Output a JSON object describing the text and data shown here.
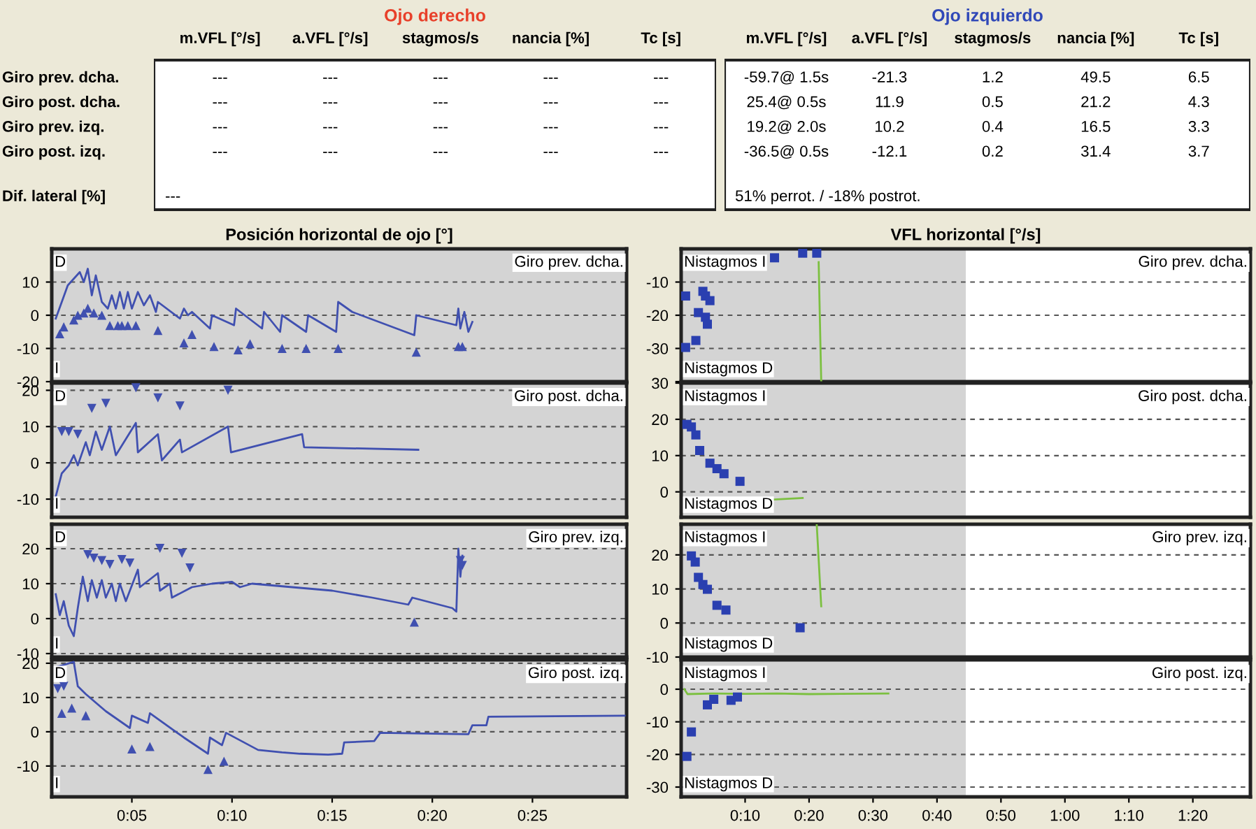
{
  "chart_data": [
    {
      "type": "other",
      "title": "Ojo derecho",
      "color": "#e8402a",
      "categories": [
        "m.VFL [°/s]",
        "a.VFL [°/s]",
        "stagmos/s",
        "nancia [%]",
        "Tc [s]"
      ],
      "y_categories": [
        "Giro prev. dcha.",
        "Giro post. dcha.",
        "Giro prev. izq.",
        "Giro post. izq.",
        "Dif. lateral [%]"
      ],
      "cell_labels": [
        [
          "---",
          "---",
          "---",
          "---",
          "---"
        ],
        [
          "---",
          "---",
          "---",
          "---",
          "---"
        ],
        [
          "---",
          "---",
          "---",
          "---",
          "---"
        ],
        [
          "---",
          "---",
          "---",
          "---",
          "---"
        ],
        [
          "---",
          null,
          null,
          null,
          null
        ]
      ]
    },
    {
      "type": "other",
      "title": "Ojo izquierdo",
      "color": "#3048b8",
      "categories": [
        "m.VFL [°/s]",
        "a.VFL [°/s]",
        "stagmos/s",
        "nancia [%]",
        "Tc [s]"
      ],
      "cell_labels": [
        [
          "-59.7@ 1.5s",
          "-21.3",
          "1.2",
          "49.5",
          "6.5"
        ],
        [
          "25.4@ 0.5s",
          "11.9",
          "0.5",
          "21.2",
          "4.3"
        ],
        [
          "19.2@ 2.0s",
          "10.2",
          "0.4",
          "16.5",
          "3.3"
        ],
        [
          "-36.5@ 0.5s",
          "-12.1",
          "0.2",
          "31.4",
          "3.7"
        ],
        [
          "51% perrot. / -18% postrot.",
          null,
          null,
          null,
          null
        ]
      ]
    },
    {
      "type": "line",
      "subtitle": "Posición horizontal de ojo [°]",
      "title": "Giro prev. dcha.",
      "annotations": [
        "D",
        "I"
      ],
      "bands": [
        {
          "axis": "x",
          "from": 1,
          "to": 29.7,
          "color": "#d4d4d4"
        }
      ],
      "xlim": [
        1,
        29.7
      ],
      "ylim": [
        -20,
        20
      ],
      "yticks": [
        -20,
        -10,
        0,
        10
      ],
      "grid": "y",
      "tick_labels": "y",
      "series": [
        {
          "type": "line",
          "color": "#4050b0",
          "x": [
            1.2,
            1.5,
            1.8,
            2.1,
            2.4,
            2.6,
            2.8,
            3.0,
            3.2,
            3.5,
            3.8,
            4.0,
            4.2,
            4.4,
            4.6,
            4.8,
            5.0,
            5.3,
            5.6,
            5.9,
            6.2,
            6.3,
            7.4,
            7.6,
            7.8,
            8.0,
            8.9,
            9.0,
            10.1,
            10.2,
            11.5,
            11.6,
            12.4,
            12.5,
            13.7,
            13.8,
            15.2,
            15.3,
            16,
            19.1,
            19.2,
            21.2,
            21.3,
            21.4,
            21.6,
            21.8,
            22
          ],
          "values": [
            -1,
            4,
            9,
            11,
            13,
            10,
            14,
            6,
            12,
            4,
            2,
            6,
            2,
            7,
            2,
            7,
            2,
            7,
            3,
            6,
            1,
            4,
            -1,
            2,
            0,
            1,
            -4,
            0,
            -3,
            2,
            -4,
            1,
            -5,
            0,
            -5,
            0,
            -5,
            4,
            1,
            -6,
            0,
            -3,
            2,
            -4,
            1,
            -5,
            -2
          ]
        },
        {
          "type": "scatter",
          "marker": "triangle",
          "color": "#4050b0",
          "x": [
            1.4,
            1.6,
            2.1,
            2.3,
            2.6,
            2.8,
            3.1,
            3.5,
            3.9,
            4.3,
            4.5,
            4.8,
            5.2,
            6.3,
            7.6,
            8.0,
            9.1,
            10.3,
            10.9,
            12.5,
            13.7,
            15.3,
            19.2,
            21.3,
            21.5
          ],
          "values": [
            -5.6,
            -3.5,
            -1.4,
            0,
            0.7,
            2.1,
            0.7,
            0,
            -3.1,
            -3.1,
            -3.1,
            -3.1,
            -3.1,
            -4.6,
            -8.3,
            -5.8,
            -9.4,
            -10.4,
            -8.6,
            -10,
            -10,
            -10,
            -11.1,
            -9.4,
            -9.4
          ]
        }
      ]
    },
    {
      "type": "line",
      "title": "Giro post. dcha.",
      "annotations": [
        "D",
        "I"
      ],
      "bands": [
        {
          "axis": "x",
          "from": 1,
          "to": 29.7,
          "color": "#d4d4d4"
        }
      ],
      "xlim": [
        1,
        29.7
      ],
      "ylim": [
        -15,
        22
      ],
      "yticks": [
        -10,
        0,
        10,
        20
      ],
      "grid": "y",
      "tick_labels": "y",
      "series": [
        {
          "type": "line",
          "color": "#4050b0",
          "x": [
            1.2,
            1.5,
            1.85,
            2.1,
            2.3,
            2.7,
            2.9,
            3.2,
            3.5,
            3.9,
            4.2,
            5.2,
            5.3,
            6.3,
            6.5,
            7.4,
            7.5,
            9.8,
            9.95,
            13.5,
            13.6,
            19.3
          ],
          "values": [
            -9.3,
            -2.9,
            -0.7,
            2.1,
            -0.7,
            5.7,
            2.1,
            8.6,
            3.6,
            10,
            2.1,
            11,
            2.9,
            7.9,
            0.7,
            6.4,
            2.9,
            10,
            2.9,
            7.9,
            4.3,
            3.6
          ]
        },
        {
          "type": "scatter",
          "marker": "triangle_down",
          "color": "#4050b0",
          "x": [
            1.5,
            1.85,
            2.3,
            3.0,
            3.7,
            5.2,
            6.3,
            7.4,
            9.8
          ],
          "values": [
            8.6,
            8.6,
            7.9,
            15,
            16.4,
            20.7,
            17.9,
            15.7,
            20
          ]
        }
      ]
    },
    {
      "type": "line",
      "title": "Giro prev. izq.",
      "annotations": [
        "D",
        "I"
      ],
      "bands": [
        {
          "axis": "x",
          "from": 1,
          "to": 29.7,
          "color": "#d4d4d4"
        }
      ],
      "xlim": [
        1,
        29.7
      ],
      "ylim": [
        -11,
        27
      ],
      "yticks": [
        -10,
        0,
        10,
        20
      ],
      "grid": "y",
      "tick_labels": "y",
      "series": [
        {
          "type": "line",
          "color": "#4050b0",
          "x": [
            1.2,
            1.4,
            1.6,
            1.85,
            2.1,
            2.3,
            2.55,
            2.8,
            3.0,
            3.25,
            3.5,
            3.7,
            4.0,
            4.2,
            4.4,
            4.7,
            5.3,
            5.4,
            6.3,
            6.4,
            6.9,
            7.0,
            8,
            9,
            10,
            10.4,
            11,
            13,
            15,
            17,
            18.8,
            19.0,
            21.0,
            21.2,
            21.3,
            21.4,
            21.5
          ],
          "values": [
            7,
            1,
            5,
            -2,
            -5,
            3,
            12,
            5,
            11,
            6,
            11,
            6,
            10,
            5,
            10,
            5,
            14,
            9,
            13,
            8,
            10,
            6,
            9,
            10,
            10.5,
            9,
            10,
            9,
            8,
            6,
            4,
            6,
            3,
            2,
            20,
            12,
            18
          ]
        },
        {
          "type": "scatter",
          "marker": "triangle_down",
          "color": "#4050b0",
          "x": [
            2.8,
            3.1,
            3.5,
            3.9,
            4.5,
            4.9,
            6.4,
            7.5,
            7.9,
            21.4,
            21.5
          ],
          "values": [
            18.3,
            17.3,
            16.6,
            15.5,
            16.9,
            15.9,
            20.1,
            18.7,
            14.5,
            16.6,
            15.2
          ]
        },
        {
          "type": "scatter",
          "marker": "triangle",
          "color": "#4050b0",
          "x": [
            19.1
          ],
          "values": [
            -1
          ]
        }
      ]
    },
    {
      "type": "line",
      "title": "Giro post. izq.",
      "annotations": [
        "D",
        "I"
      ],
      "bands": [
        {
          "axis": "x",
          "from": 1,
          "to": 29.7,
          "color": "#d4d4d4"
        }
      ],
      "xlim": [
        1,
        29.7
      ],
      "ylim": [
        -19,
        21
      ],
      "yticks": [
        -10,
        0,
        10,
        20
      ],
      "xticks": [
        {
          "value": 5,
          "label": "0:05"
        },
        {
          "value": 10,
          "label": "0:10"
        },
        {
          "value": 15,
          "label": "0:15"
        },
        {
          "value": 20,
          "label": "0:20"
        },
        {
          "value": 25,
          "label": "0:25"
        }
      ],
      "grid": "y",
      "series": [
        {
          "type": "line",
          "color": "#4050b0",
          "x": [
            1.3,
            2.1,
            2.3,
            2.7,
            3.7,
            4.9,
            5.0,
            5.8,
            5.9,
            7.6,
            8.8,
            8.9,
            9.5,
            9.7,
            11.3,
            12.5,
            13.4,
            14.8,
            15.5,
            15.6,
            17.1,
            17.4,
            21.8,
            22,
            22.7,
            22.8,
            29.6
          ],
          "values": [
            19,
            20.4,
            13.3,
            11,
            6,
            1.1,
            4.7,
            2.6,
            5.4,
            -1.7,
            -6.4,
            -1.7,
            -3.9,
            -0.3,
            -5.3,
            -6,
            -6.4,
            -6.7,
            -6.4,
            -3.1,
            -2.7,
            -0.3,
            -0.7,
            1.9,
            1.9,
            4.4,
            4.7
          ]
        },
        {
          "type": "scatter",
          "marker": "triangle",
          "color": "#4050b0",
          "x": [
            1.5,
            2.0,
            2.7,
            5.0,
            5.9,
            8.8,
            9.6
          ],
          "values": [
            5.4,
            6.9,
            4.7,
            -5,
            -4.3,
            -11,
            -8.6
          ]
        },
        {
          "type": "scatter",
          "marker": "triangle_down",
          "color": "#4050b0",
          "x": [
            1.3,
            1.6
          ],
          "values": [
            12.6,
            13.3
          ]
        }
      ]
    },
    {
      "type": "scatter",
      "subtitle": "VFL horizontal [°/s]",
      "title": "Giro prev. dcha.",
      "annotations": [
        "Nistagmos I",
        "Nistagmos D"
      ],
      "bands": [
        {
          "axis": "x",
          "from": 0,
          "to": 44.5,
          "color": "#d4d4d4"
        }
      ],
      "xlim": [
        0,
        89
      ],
      "ylim": [
        -40,
        0
      ],
      "yticks": [
        {
          "value": -40,
          "label": null
        },
        -30,
        -20,
        -10
      ],
      "grid": "y",
      "tick_labels": "y",
      "series": [
        {
          "type": "scatter",
          "marker": "square",
          "color": "#2a3fb0",
          "x": [
            0.7,
            0.7,
            2.3,
            3.4,
            3.8,
            4.5,
            2.7,
            3.8,
            4.1,
            14.6,
            19,
            21.2
          ],
          "values": [
            -14.2,
            -29.7,
            -27.6,
            -12.8,
            -14.2,
            -15.6,
            -19.2,
            -20.6,
            -22.7,
            -2.7,
            -1.3,
            -1.3
          ]
        },
        {
          "type": "line",
          "color": "#7cc040",
          "x": [
            21.5,
            21.9
          ],
          "values": [
            -4,
            -40
          ]
        }
      ]
    },
    {
      "type": "scatter",
      "title": "Giro post. dcha.",
      "annotations": [
        "Nistagmos I",
        "Nistagmos D"
      ],
      "bands": [
        {
          "axis": "x",
          "from": 0,
          "to": 44.5,
          "color": "#d4d4d4"
        }
      ],
      "xlim": [
        0,
        89
      ],
      "ylim": [
        -7,
        30
      ],
      "yticks": [
        0,
        10,
        20,
        30
      ],
      "grid": "y",
      "tick_labels": "y",
      "series": [
        {
          "type": "scatter",
          "marker": "square",
          "color": "#2a3fb0",
          "x": [
            0.9,
            1.6,
            2.3,
            2.9,
            4.5,
            5.6,
            6.7,
            9.2
          ],
          "values": [
            18.6,
            17.9,
            15.7,
            11.4,
            7.9,
            6.4,
            5,
            2.9
          ]
        },
        {
          "type": "line",
          "color": "#7cc040",
          "x": [
            14.6,
            19
          ],
          "values": [
            -2.1,
            -1.7
          ]
        }
      ]
    },
    {
      "type": "scatter",
      "title": "Giro prev. izq.",
      "annotations": [
        "Nistagmos I",
        "Nistagmos D"
      ],
      "bands": [
        {
          "axis": "x",
          "from": 0,
          "to": 44.5,
          "color": "#d4d4d4"
        }
      ],
      "xlim": [
        0,
        89
      ],
      "ylim": [
        -10,
        29
      ],
      "yticks": [
        -10,
        0,
        10,
        20
      ],
      "grid": "y",
      "tick_labels": "y",
      "series": [
        {
          "type": "scatter",
          "marker": "square",
          "color": "#2a3fb0",
          "x": [
            1.6,
            2.2,
            2.7,
            3.4,
            4.1,
            5.6,
            7,
            18.6
          ],
          "values": [
            19.7,
            17.9,
            13.4,
            11.3,
            9.9,
            5.2,
            3.8,
            -1.4
          ]
        },
        {
          "type": "line",
          "color": "#7cc040",
          "x": [
            21.2,
            21.9
          ],
          "values": [
            28.9,
            4.9
          ]
        }
      ]
    },
    {
      "type": "scatter",
      "title": "Giro post. izq.",
      "annotations": [
        "Nistagmos I",
        "Nistagmos D"
      ],
      "bands": [
        {
          "axis": "x",
          "from": 0,
          "to": 44.5,
          "color": "#d4d4d4"
        }
      ],
      "xlim": [
        0,
        89
      ],
      "ylim": [
        -33,
        9
      ],
      "yticks": [
        -30,
        -20,
        -10,
        0
      ],
      "xticks": [
        {
          "value": 10,
          "label": "0:10"
        },
        {
          "value": 20,
          "label": "0:20"
        },
        {
          "value": 30,
          "label": "0:30"
        },
        {
          "value": 40,
          "label": "0:40"
        },
        {
          "value": 50,
          "label": "0:50"
        },
        {
          "value": 60,
          "label": "1:00"
        },
        {
          "value": 70,
          "label": "1:10"
        },
        {
          "value": 80,
          "label": "1:20"
        }
      ],
      "grid": "y",
      "series": [
        {
          "type": "scatter",
          "marker": "square",
          "color": "#2a3fb0",
          "x": [
            0.9,
            1.6,
            4.1,
            5.1,
            7.8,
            8.8
          ],
          "values": [
            -20.6,
            -13.1,
            -4.8,
            -3.1,
            -3.4,
            -2.4
          ]
        },
        {
          "type": "line",
          "color": "#7cc040",
          "x": [
            0.5,
            1,
            5,
            10,
            15,
            20,
            25,
            32.4
          ],
          "values": [
            0,
            -1.5,
            -1.3,
            -1.4,
            -1.3,
            -1.5,
            -1.4,
            -1.3
          ]
        }
      ]
    }
  ]
}
